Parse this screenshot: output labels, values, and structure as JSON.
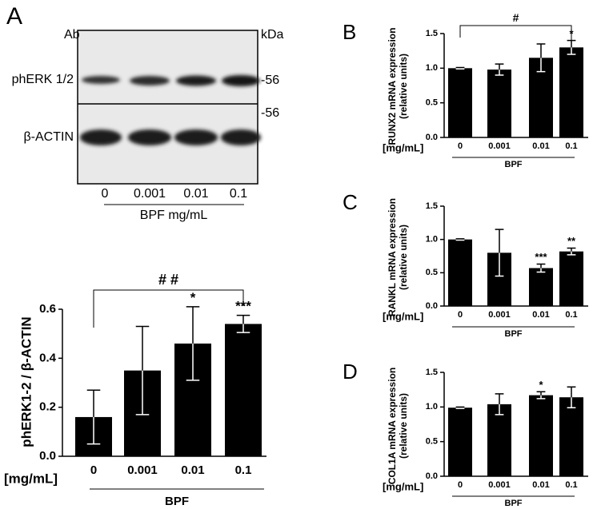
{
  "blot": {
    "ab_label": "Ab",
    "kda_label": "kDa",
    "rows": [
      "phERK 1/2",
      "β-ACTIN"
    ],
    "markers": [
      "-56",
      "-56"
    ],
    "lanes": [
      "0",
      "0.001",
      "0.01",
      "0.1"
    ],
    "group_label": "BPF mg/mL"
  },
  "chart_data": [
    {
      "type": "bar",
      "panel_label": "A",
      "ylabel": [
        "phERK1-2 / β-ACTIN"
      ],
      "x_unit_label": "[mg/mL]",
      "group_label": "BPF",
      "categories": [
        "0",
        "0.001",
        "0.01",
        "0.1"
      ],
      "values": [
        0.16,
        0.35,
        0.46,
        0.54
      ],
      "errors": [
        0.11,
        0.18,
        0.15,
        0.035
      ],
      "significance": [
        null,
        null,
        "*",
        "***"
      ],
      "bracket_label": "# #",
      "color": "#000000",
      "ylim": [
        0,
        0.6
      ],
      "yticks": [
        {
          "value": 0,
          "label": "0.0"
        },
        0.2,
        0.4,
        0.6
      ]
    },
    {
      "type": "bar",
      "panel_label": "B",
      "ylabel": [
        "RUNX2 mRNA expression",
        "(relative units)"
      ],
      "x_unit_label": "[mg/mL]",
      "group_label": "BPF",
      "categories": [
        "0",
        "0.001",
        "0.01",
        "0.1"
      ],
      "values": [
        1.0,
        0.98,
        1.15,
        1.3
      ],
      "errors": [
        0.01,
        0.08,
        0.2,
        0.1
      ],
      "significance": [
        null,
        null,
        null,
        "*"
      ],
      "bracket_label": "#",
      "color": "#000000",
      "ylim": [
        0,
        1.5
      ],
      "yticks": [
        {
          "value": 0,
          "label": "0.0"
        },
        0.5,
        {
          "value": 1,
          "label": "1.0"
        },
        1.5
      ]
    },
    {
      "type": "bar",
      "panel_label": "C",
      "ylabel": [
        "RANKL mRNA expression",
        "(relative units)"
      ],
      "x_unit_label": "[mg/mL]",
      "group_label": "BPF",
      "categories": [
        "0",
        "0.001",
        "0.01",
        "0.1"
      ],
      "values": [
        1.0,
        0.8,
        0.57,
        0.82
      ],
      "errors": [
        0.01,
        0.35,
        0.06,
        0.05
      ],
      "significance": [
        null,
        null,
        "***",
        "**"
      ],
      "color": "#000000",
      "ylim": [
        0,
        1.5
      ],
      "yticks": [
        {
          "value": 0,
          "label": "0.0"
        },
        0.5,
        {
          "value": 1,
          "label": "1.0"
        },
        1.5
      ]
    },
    {
      "type": "bar",
      "panel_label": "D",
      "ylabel": [
        "COL1A mRNA expression",
        "(relative units)"
      ],
      "x_unit_label": "[mg/mL]",
      "group_label": "BPF",
      "categories": [
        "0",
        "0.001",
        "0.01",
        "0.1"
      ],
      "values": [
        0.99,
        1.04,
        1.17,
        1.14
      ],
      "errors": [
        0.01,
        0.15,
        0.05,
        0.15
      ],
      "significance": [
        null,
        null,
        "*",
        null
      ],
      "color": "#000000",
      "ylim": [
        0,
        1.5
      ],
      "yticks": [
        {
          "value": 0,
          "label": "0.0"
        },
        0.5,
        {
          "value": 1,
          "label": "1.0"
        },
        1.5
      ]
    }
  ]
}
